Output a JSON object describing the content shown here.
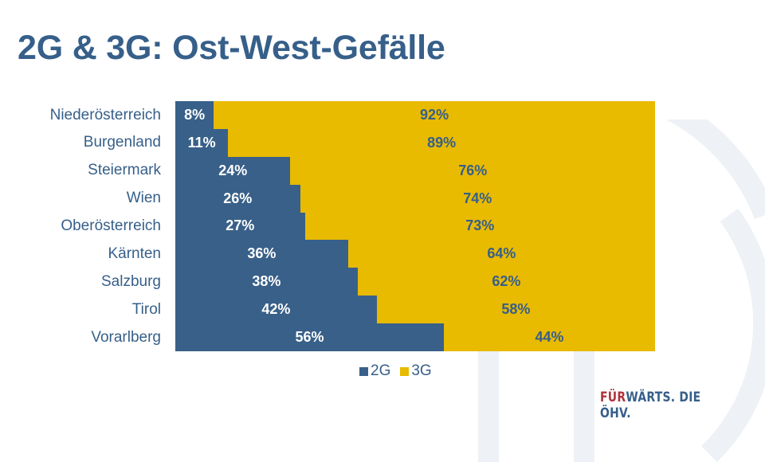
{
  "slide": {
    "title": "2G & 3G: Ost-West-Gefälle",
    "brand": {
      "part1": "FÜR",
      "part2": "WÄRTS. DIE ÖHV."
    }
  },
  "colors": {
    "2G": "#386089",
    "3G": "#e8ba00",
    "text": "#365f8a",
    "brand_red": "#b0323b",
    "watermark": "#eef1f5"
  },
  "legend": [
    {
      "label": "2G",
      "color": "#386089"
    },
    {
      "label": "3G",
      "color": "#e8ba00"
    }
  ],
  "chart_data": {
    "type": "bar",
    "orientation": "horizontal",
    "stacked": "100%",
    "title": "2G & 3G: Ost-West-Gefälle",
    "xlabel": "",
    "ylabel": "",
    "xlim": [
      0,
      100
    ],
    "grid": false,
    "legend_position": "bottom",
    "categories": [
      "Niederösterreich",
      "Burgenland",
      "Steiermark",
      "Wien",
      "Oberösterreich",
      "Kärnten",
      "Salzburg",
      "Tirol",
      "Vorarlberg"
    ],
    "series": [
      {
        "name": "2G",
        "values": [
          8,
          11,
          24,
          26,
          27,
          36,
          38,
          42,
          56
        ],
        "labels": [
          "8%",
          "11%",
          "24%",
          "26%",
          "27%",
          "36%",
          "38%",
          "42%",
          "56%"
        ]
      },
      {
        "name": "3G",
        "values": [
          92,
          89,
          76,
          74,
          73,
          64,
          62,
          58,
          44
        ],
        "labels": [
          "92%",
          "89%",
          "76%",
          "74%",
          "73%",
          "64%",
          "62%",
          "58%",
          "44%"
        ]
      }
    ]
  }
}
